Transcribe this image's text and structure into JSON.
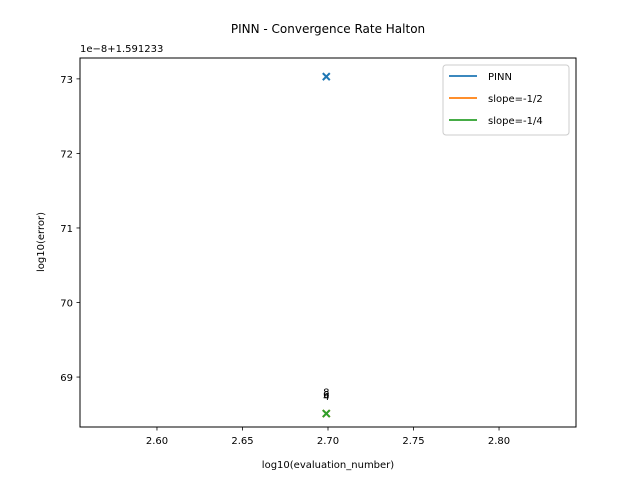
{
  "chart_data": {
    "type": "scatter",
    "title": "PINN - Convergence Rate Halton",
    "xlabel": "log10(evaluation_number)",
    "ylabel": "log10(error)",
    "y_offset_text": "1e−8+1.591233",
    "xlim": [
      2.555,
      2.845
    ],
    "ylim": [
      68.33,
      73.28
    ],
    "xticks": [
      2.6,
      2.65,
      2.7,
      2.75,
      2.8
    ],
    "xtick_labels": [
      "2.60",
      "2.65",
      "2.70",
      "2.75",
      "2.80"
    ],
    "yticks": [
      69,
      70,
      71,
      72,
      73
    ],
    "ytick_labels": [
      "69",
      "70",
      "71",
      "72",
      "73"
    ],
    "grid": false,
    "legend_position": "top-right",
    "series": [
      {
        "name": "PINN",
        "color": "#1f77b4",
        "marker": "x",
        "points": [
          {
            "x": 2.699,
            "y": 73.03
          }
        ]
      },
      {
        "name": "slope=-1/2",
        "color": "#ff7f0e",
        "marker": "x",
        "points": [
          {
            "x": 2.699,
            "y": 68.51
          }
        ]
      },
      {
        "name": "slope=-1/4",
        "color": "#2ca02c",
        "marker": "x",
        "points": [
          {
            "x": 2.699,
            "y": 68.51
          }
        ]
      }
    ],
    "annotations": [
      {
        "text": "8",
        "x": 2.699,
        "y": 68.79
      },
      {
        "text": "6",
        "x": 2.699,
        "y": 68.76
      },
      {
        "text": "4",
        "x": 2.699,
        "y": 68.73
      }
    ]
  }
}
